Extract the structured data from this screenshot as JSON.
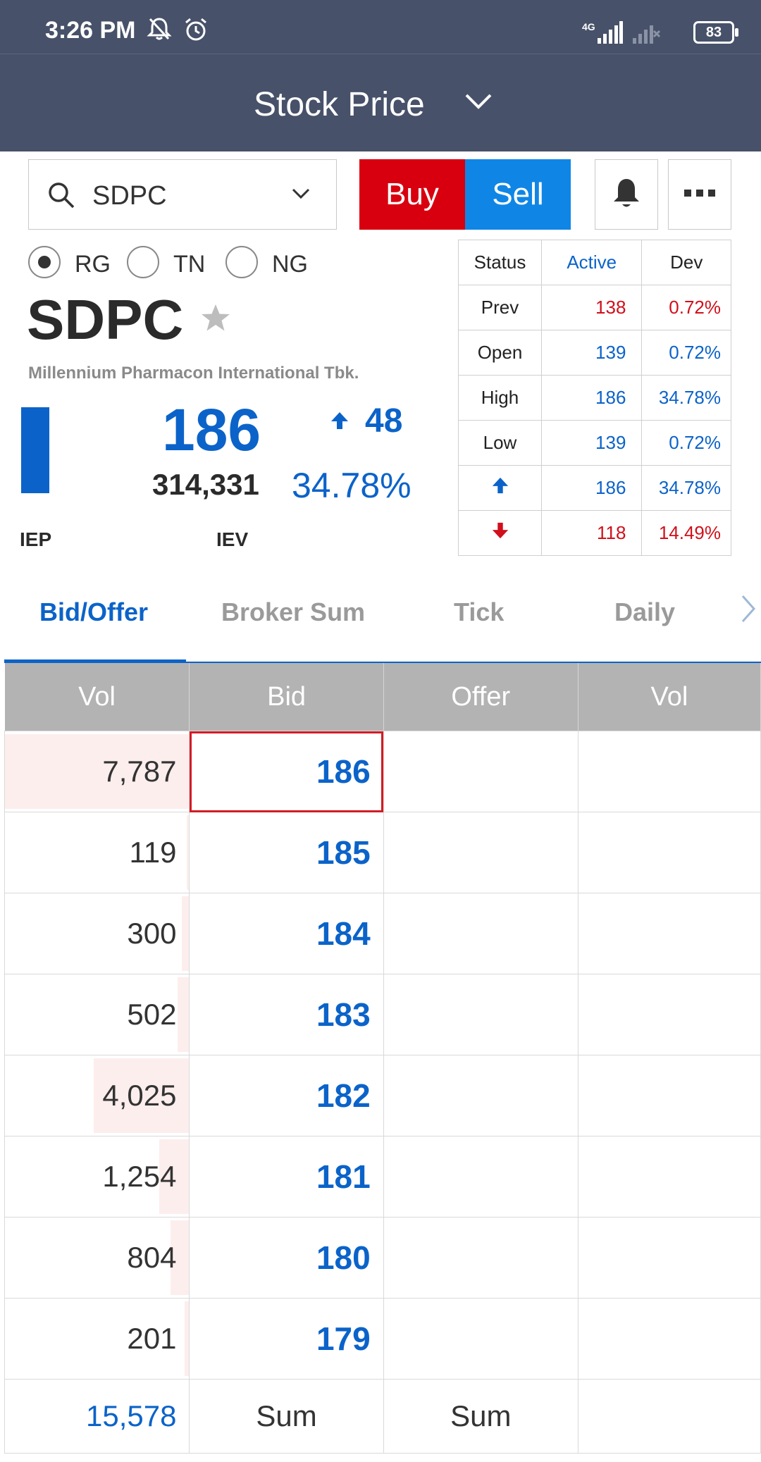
{
  "status_bar": {
    "time": "3:26 PM",
    "network": "4G",
    "battery": "83"
  },
  "header": {
    "title": "Stock Price"
  },
  "search": {
    "symbol": "SDPC"
  },
  "actions": {
    "buy_label": "Buy",
    "sell_label": "Sell"
  },
  "board": {
    "options": [
      {
        "label": "RG",
        "selected": true
      },
      {
        "label": "TN",
        "selected": false
      },
      {
        "label": "NG",
        "selected": false
      }
    ]
  },
  "stock": {
    "symbol": "SDPC",
    "company": "Millennium Pharmacon International Tbk.",
    "price": "186",
    "change": "48",
    "volume": "314,331",
    "change_pct": "34.78%",
    "iep_label": "IEP",
    "iev_label": "IEV"
  },
  "status_table": {
    "header": [
      "Status",
      "Active",
      "Dev"
    ],
    "rows": [
      {
        "label": "Prev",
        "value": "138",
        "dev": "0.72%",
        "color": "red"
      },
      {
        "label": "Open",
        "value": "139",
        "dev": "0.72%",
        "color": "blue"
      },
      {
        "label": "High",
        "value": "186",
        "dev": "34.78%",
        "color": "blue"
      },
      {
        "label": "Low",
        "value": "139",
        "dev": "0.72%",
        "color": "blue"
      },
      {
        "label": "up-arrow",
        "value": "186",
        "dev": "34.78%",
        "color": "blue"
      },
      {
        "label": "down-arrow",
        "value": "118",
        "dev": "14.49%",
        "color": "red"
      }
    ]
  },
  "tabs": [
    "Bid/Offer",
    "Broker Sum",
    "Tick",
    "Daily"
  ],
  "order_book": {
    "headers": [
      "Vol",
      "Bid",
      "Offer",
      "Vol"
    ],
    "rows": [
      {
        "bid_vol": "7,787",
        "bid": "186",
        "bar_pct": 100
      },
      {
        "bid_vol": "119",
        "bid": "185",
        "bar_pct": 1.5
      },
      {
        "bid_vol": "300",
        "bid": "184",
        "bar_pct": 3.9
      },
      {
        "bid_vol": "502",
        "bid": "183",
        "bar_pct": 6.4
      },
      {
        "bid_vol": "4,025",
        "bid": "182",
        "bar_pct": 51.7
      },
      {
        "bid_vol": "1,254",
        "bid": "181",
        "bar_pct": 16.1
      },
      {
        "bid_vol": "804",
        "bid": "180",
        "bar_pct": 10.3
      },
      {
        "bid_vol": "201",
        "bid": "179",
        "bar_pct": 2.6
      }
    ],
    "sum_vol": "15,578",
    "sum_label": "Sum"
  },
  "colors": {
    "header_bg": "#475169",
    "buy": "#d8000f",
    "sell": "#0f86e6",
    "accent_blue": "#0b63c9",
    "negative_red": "#d0101b"
  }
}
